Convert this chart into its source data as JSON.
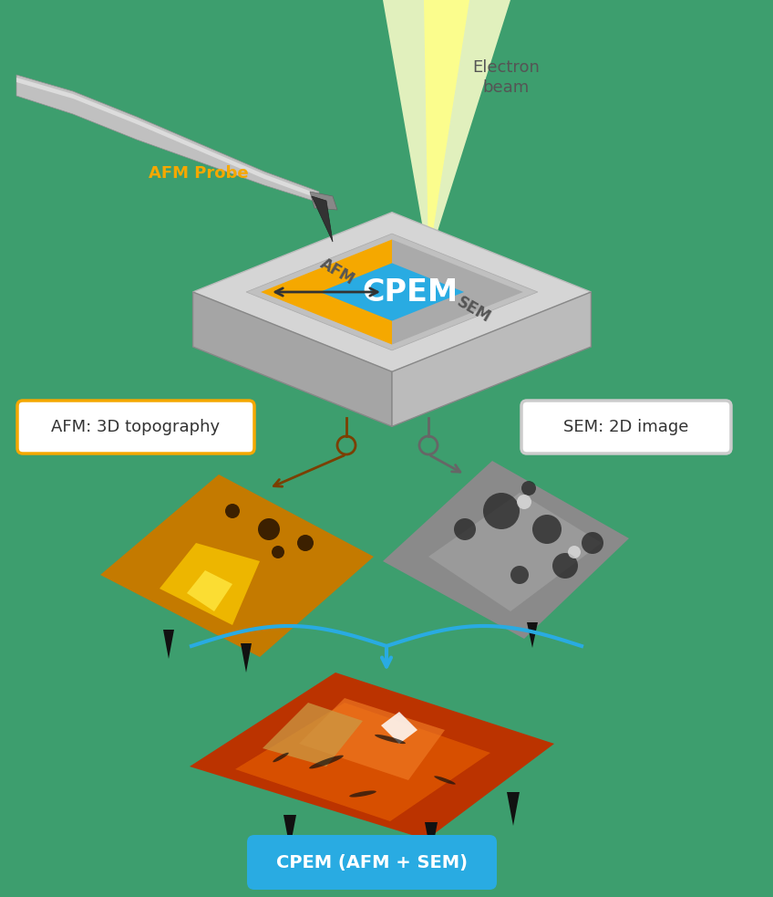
{
  "bg_color": "#3d9e6e",
  "title": "CPEM",
  "afm_label": "AFM",
  "sem_label": "SEM",
  "afm_probe_label": "AFM Probe",
  "electron_beam_label": "Electron\nbeam",
  "afm_3d_label": "AFM: 3D topography",
  "sem_2d_label": "SEM: 2D image",
  "cpem_result_label": "CPEM (AFM + SEM)",
  "afm_color": "#F5A800",
  "sem_color": "#AAAAAA",
  "cpem_color": "#29ABE2",
  "platform_top": "#C8C8C8",
  "platform_left": "#A8A8A8",
  "platform_right": "#B5B5B5",
  "platform_border": "#999999",
  "electron_beam_color": "#FFFFAA",
  "electron_beam_bright": "#FFFF55",
  "arrow_afm_color": "#7B3F00",
  "arrow_sem_color": "#666666",
  "cyan_color": "#29ABE2",
  "label_afm_border": "#F5A800",
  "label_sem_border": "#DDDDDD",
  "label_cpem_bg": "#29ABE2",
  "white": "#FFFFFF",
  "dark": "#333333"
}
